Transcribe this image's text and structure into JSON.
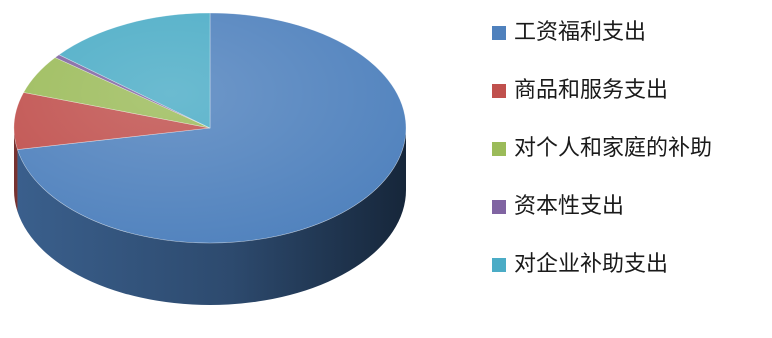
{
  "chart_data": {
    "type": "pie",
    "style": "3d",
    "title": "",
    "legend_position": "right",
    "categories": [
      "工资福利支出",
      "商品和服务支出",
      "对个人和家庭的补助",
      "资本性支出",
      "对企业补助支出"
    ],
    "values": [
      72,
      8,
      5.5,
      0.5,
      14
    ],
    "unit": "%",
    "colors": [
      "#4F81BD",
      "#C0504D",
      "#9BBB59",
      "#8064A2",
      "#4BACC6"
    ]
  }
}
